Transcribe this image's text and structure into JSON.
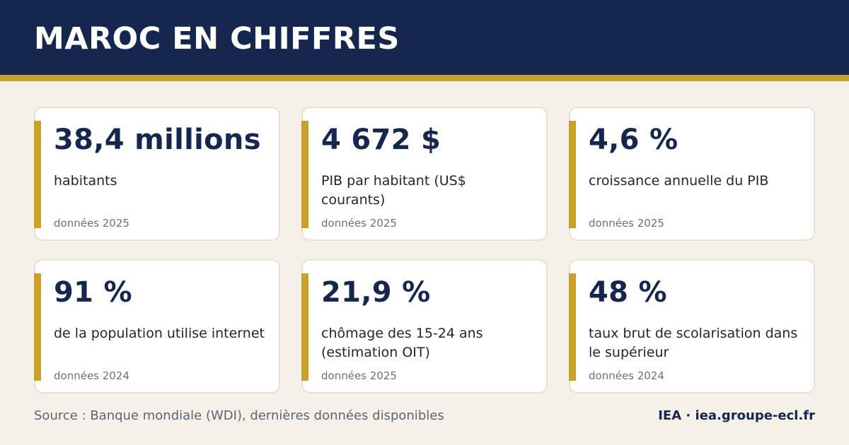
{
  "header": {
    "title": "MAROC EN CHIFFRES"
  },
  "colors": {
    "navy": "#15274f",
    "gold": "#c9a02a",
    "background": "#f5f1e8",
    "card": "#ffffff"
  },
  "stats": [
    {
      "value": "38,4 millions",
      "label": "habitants",
      "year": "données 2025"
    },
    {
      "value": "4 672 $",
      "label": "PIB par habitant (US$ courants)",
      "year": "données 2025"
    },
    {
      "value": "4,6 %",
      "label": "croissance annuelle du PIB",
      "year": "données 2025"
    },
    {
      "value": "91 %",
      "label": "de la population utilise internet",
      "year": "données 2024"
    },
    {
      "value": "21,9 %",
      "label": "chômage des 15-24 ans (estimation OIT)",
      "year": "données 2025"
    },
    {
      "value": "48 %",
      "label": "taux brut de scolarisation dans le supérieur",
      "year": "données 2024"
    }
  ],
  "footer": {
    "source": "Source : Banque mondiale (WDI), dernières données disponibles",
    "brand": "IEA · iea.groupe-ecl.fr"
  }
}
